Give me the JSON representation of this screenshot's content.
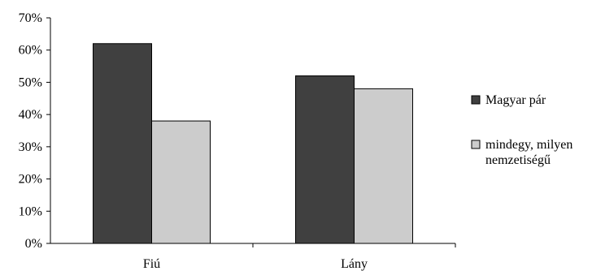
{
  "chart_data": {
    "type": "bar",
    "categories": [
      "Fiú",
      "Lány"
    ],
    "series": [
      {
        "name": "Magyar pár",
        "values": [
          0.62,
          0.52
        ],
        "color": "#404040"
      },
      {
        "name_lines": [
          "mindegy, milyen",
          "nemzetiségű"
        ],
        "values": [
          0.38,
          0.48
        ],
        "color": "#cccccc"
      }
    ],
    "ylim": [
      0,
      0.7
    ],
    "ytick_values": [
      0,
      0.1,
      0.2,
      0.3,
      0.4,
      0.5,
      0.6,
      0.7
    ],
    "ytick_labels": [
      "0%",
      "10%",
      "20%",
      "30%",
      "40%",
      "50%",
      "60%",
      "70%"
    ],
    "legend_position": "right",
    "grid": false
  }
}
